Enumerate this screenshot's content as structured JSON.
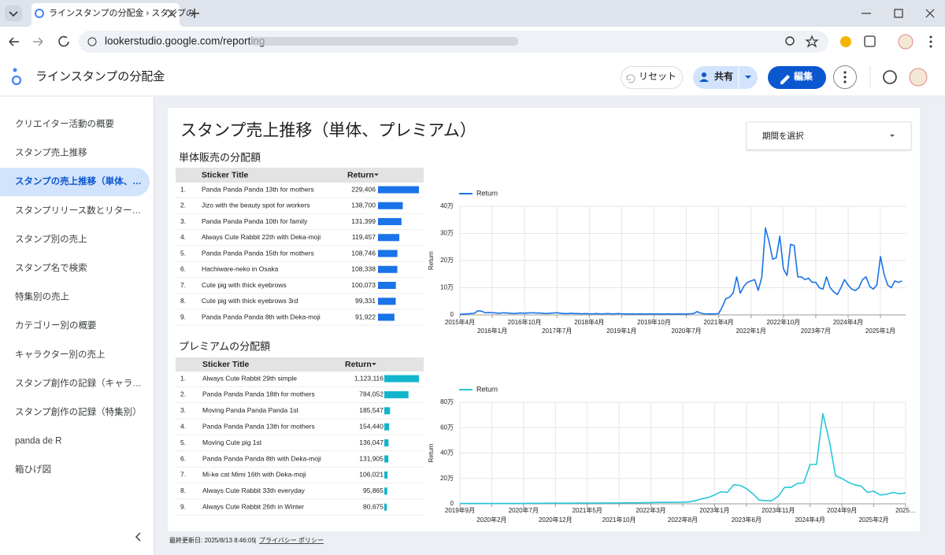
{
  "browser": {
    "tab_title": "ラインスタンプの分配金 › スタンプの",
    "url": "lookerstudio.google.com/reporting"
  },
  "header": {
    "title": "ラインスタンプの分配金",
    "reset": "リセット",
    "share": "共有",
    "edit": "編集"
  },
  "sidebar": {
    "items": [
      "クリエイター活動の概要",
      "スタンプ売上推移",
      "スタンプの売上推移（単体、…",
      "スタンプリリース数とリター…",
      "スタンプ別の売上",
      "スタンプ名で検索",
      "特集別の売上",
      "カテゴリー別の概要",
      "キャラクター別の売上",
      "スタンプ創作の記録（キャラ…",
      "スタンプ創作の記録（特集別）",
      "panda de R",
      "箱ひげ図"
    ],
    "active": 2
  },
  "report": {
    "title": "スタンプ売上推移（単体、プレミアム）",
    "date_picker": "期間を選択",
    "footer": {
      "updated": "最終更新日: 2025/8/13 8:46:05",
      "privacy": "プライバシー ポリシー"
    },
    "tables": [
      {
        "title": "単体販売の分配額",
        "columns": [
          "Sticker Title",
          "Return"
        ],
        "bar_color": "#1a73e8",
        "rows": [
          {
            "rank": "1.",
            "title": "Panda Panda Panda 13th for mothers",
            "value": 229406,
            "value_label": "229,406"
          },
          {
            "rank": "2.",
            "title": "Jizo with the beauty spot for workers",
            "value": 138700,
            "value_label": "138,700"
          },
          {
            "rank": "3.",
            "title": "Panda Panda Panda 10th for family",
            "value": 131399,
            "value_label": "131,399"
          },
          {
            "rank": "4.",
            "title": "Always Cute Rabbit 22th with Deka-moji",
            "value": 119457,
            "value_label": "119,457"
          },
          {
            "rank": "5.",
            "title": "Panda Panda Panda 15th for mothers",
            "value": 108746,
            "value_label": "108,746"
          },
          {
            "rank": "6.",
            "title": "Hachiware-neko in Osaka",
            "value": 108338,
            "value_label": "108,338"
          },
          {
            "rank": "7.",
            "title": "Cute pig with thick eyebrows",
            "value": 100073,
            "value_label": "100,073"
          },
          {
            "rank": "8.",
            "title": "Cute pig with thick eyebrows 3rd",
            "value": 99331,
            "value_label": "99,331"
          },
          {
            "rank": "9.",
            "title": "Panda Panda Panda 8th with Deka-moji",
            "value": 91922,
            "value_label": "91,922"
          }
        ]
      },
      {
        "title": "プレミアムの分配額",
        "columns": [
          "Sticker Title",
          "Return"
        ],
        "bar_color": "#12b5cb",
        "rows": [
          {
            "rank": "1.",
            "title": "Always Cute Rabbit 29th simple",
            "value": 1123116,
            "value_label": "1,123,116"
          },
          {
            "rank": "2.",
            "title": "Panda Panda Panda 18th for mothers",
            "value": 784052,
            "value_label": "784,052"
          },
          {
            "rank": "3.",
            "title": "Moving Panda Panda Panda 1st",
            "value": 185547,
            "value_label": "185,547"
          },
          {
            "rank": "4.",
            "title": "Panda Panda Panda 13th for mothers",
            "value": 154440,
            "value_label": "154,440"
          },
          {
            "rank": "5.",
            "title": "Moving Cute pig 1st",
            "value": 136047,
            "value_label": "136,047"
          },
          {
            "rank": "6.",
            "title": "Panda Panda Panda 8th with Deka-moji",
            "value": 131905,
            "value_label": "131,905"
          },
          {
            "rank": "7.",
            "title": "Mi-ke cat Mimi 16th with Deka-moji",
            "value": 106021,
            "value_label": "106,021"
          },
          {
            "rank": "8.",
            "title": "Always Cute Rabbit 33th everyday",
            "value": 95865,
            "value_label": "95,865"
          },
          {
            "rank": "9.",
            "title": "Always Cute Rabbit 26th in Winter",
            "value": 80675,
            "value_label": "80,675"
          }
        ]
      }
    ]
  },
  "chart_data": [
    {
      "type": "line",
      "y_label": "Return",
      "grid": true,
      "legend": "top-left",
      "xlim": [
        "2015-04",
        "2025-08"
      ],
      "xticks": [
        {
          "value": "2015-04",
          "label": "2015年4月"
        },
        {
          "value": "2016-01",
          "label": "2016年1月"
        },
        {
          "value": "2016-10",
          "label": "2016年10月"
        },
        {
          "value": "2017-07",
          "label": "2017年7月"
        },
        {
          "value": "2018-04",
          "label": "2018年4月"
        },
        {
          "value": "2019-01",
          "label": "2019年1月"
        },
        {
          "value": "2019-10",
          "label": "2019年10月"
        },
        {
          "value": "2020-07",
          "label": "2020年7月"
        },
        {
          "value": "2021-04",
          "label": "2021年4月"
        },
        {
          "value": "2022-01",
          "label": "2022年1月"
        },
        {
          "value": "2022-10",
          "label": "2022年10月"
        },
        {
          "value": "2023-07",
          "label": "2023年7月"
        },
        {
          "value": "2024-04",
          "label": "2024年4月"
        },
        {
          "value": "2025-01",
          "label": "2025年1月"
        }
      ],
      "ylim": [
        0,
        400000
      ],
      "yticks": [
        0,
        {
          "value": 100000,
          "label": "10万"
        },
        {
          "value": 200000,
          "label": "20万"
        },
        {
          "value": 300000,
          "label": "30万"
        },
        {
          "value": 400000,
          "label": "40万"
        }
      ],
      "x": [
        "2015-04",
        "2015-05",
        "2015-06",
        "2015-07",
        "2015-08",
        "2015-09",
        "2015-10",
        "2015-11",
        "2015-12",
        "2016-01",
        "2016-02",
        "2016-03",
        "2016-04",
        "2016-05",
        "2016-06",
        "2016-07",
        "2016-08",
        "2016-09",
        "2016-10",
        "2016-11",
        "2016-12",
        "2017-01",
        "2017-02",
        "2017-03",
        "2017-04",
        "2017-05",
        "2017-06",
        "2017-07",
        "2017-08",
        "2017-09",
        "2017-10",
        "2017-11",
        "2017-12",
        "2018-01",
        "2018-02",
        "2018-03",
        "2018-04",
        "2018-05",
        "2018-06",
        "2018-07",
        "2018-08",
        "2018-09",
        "2018-10",
        "2018-11",
        "2018-12",
        "2019-01",
        "2019-02",
        "2019-03",
        "2019-04",
        "2019-05",
        "2019-06",
        "2019-07",
        "2019-08",
        "2019-09",
        "2019-10",
        "2019-11",
        "2019-12",
        "2020-01",
        "2020-02",
        "2020-03",
        "2020-04",
        "2020-05",
        "2020-06",
        "2020-07",
        "2020-08",
        "2020-09",
        "2020-10",
        "2020-11",
        "2020-12",
        "2021-01",
        "2021-02",
        "2021-03",
        "2021-04",
        "2021-05",
        "2021-06",
        "2021-07",
        "2021-08",
        "2021-09",
        "2021-10",
        "2021-11",
        "2021-12",
        "2022-01",
        "2022-02",
        "2022-03",
        "2022-04",
        "2022-05",
        "2022-06",
        "2022-07",
        "2022-08",
        "2022-09",
        "2022-10",
        "2022-11",
        "2022-12",
        "2023-01",
        "2023-02",
        "2023-03",
        "2023-04",
        "2023-05",
        "2023-06",
        "2023-07",
        "2023-08",
        "2023-09",
        "2023-10",
        "2023-11",
        "2023-12",
        "2024-01",
        "2024-02",
        "2024-03",
        "2024-04",
        "2024-05",
        "2024-06",
        "2024-07",
        "2024-08",
        "2024-09",
        "2024-10",
        "2024-11",
        "2024-12",
        "2025-01",
        "2025-02",
        "2025-03",
        "2025-04",
        "2025-05",
        "2025-06",
        "2025-07"
      ],
      "series": [
        {
          "name": "Return",
          "color": "#1a73e8",
          "values": [
            2000,
            3000,
            4000,
            5000,
            6000,
            15000,
            14000,
            8000,
            9000,
            8000,
            7000,
            6000,
            8000,
            7000,
            6000,
            5000,
            6000,
            7000,
            6000,
            7000,
            8000,
            7000,
            7000,
            6000,
            5000,
            6000,
            7000,
            8000,
            6000,
            5000,
            5000,
            6000,
            5000,
            5000,
            4000,
            5000,
            4000,
            4000,
            5000,
            4000,
            4000,
            5000,
            4000,
            4000,
            5000,
            4000,
            4000,
            3000,
            4000,
            3000,
            4000,
            3000,
            3000,
            4000,
            3000,
            4000,
            3000,
            3000,
            4000,
            3000,
            3000,
            4000,
            3000,
            3000,
            4000,
            5000,
            12000,
            6000,
            4000,
            4000,
            3000,
            4000,
            5000,
            30000,
            60000,
            65000,
            80000,
            140000,
            80000,
            105000,
            120000,
            125000,
            130000,
            90000,
            140000,
            320000,
            270000,
            205000,
            210000,
            290000,
            170000,
            145000,
            260000,
            255000,
            140000,
            140000,
            130000,
            135000,
            120000,
            120000,
            100000,
            95000,
            140000,
            100000,
            85000,
            75000,
            100000,
            130000,
            110000,
            95000,
            90000,
            100000,
            130000,
            140000,
            105000,
            95000,
            110000,
            215000,
            150000,
            110000,
            100000,
            125000,
            120000,
            125000
          ]
        }
      ]
    },
    {
      "type": "line",
      "y_label": "Return",
      "grid": true,
      "legend": "top-left",
      "xlim": [
        "2019-09",
        "2025-07"
      ],
      "xticks": [
        {
          "value": "2019-09",
          "label": "2019年9月"
        },
        {
          "value": "2020-02",
          "label": "2020年2月"
        },
        {
          "value": "2020-07",
          "label": "2020年7月"
        },
        {
          "value": "2020-12",
          "label": "2020年12月"
        },
        {
          "value": "2021-05",
          "label": "2021年5月"
        },
        {
          "value": "2021-10",
          "label": "2021年10月"
        },
        {
          "value": "2022-03",
          "label": "2022年3月"
        },
        {
          "value": "2022-08",
          "label": "2022年8月"
        },
        {
          "value": "2023-01",
          "label": "2023年1月"
        },
        {
          "value": "2023-06",
          "label": "2023年6月"
        },
        {
          "value": "2023-11",
          "label": "2023年11月"
        },
        {
          "value": "2024-04",
          "label": "2024年4月"
        },
        {
          "value": "2024-09",
          "label": "2024年9月"
        },
        {
          "value": "2025-02",
          "label": "2025年2月"
        },
        {
          "value": "2025-07",
          "label": "2025…"
        }
      ],
      "ylim": [
        0,
        800000
      ],
      "yticks": [
        0,
        {
          "value": 200000,
          "label": "20万"
        },
        {
          "value": 400000,
          "label": "40万"
        },
        {
          "value": 600000,
          "label": "60万"
        },
        {
          "value": 800000,
          "label": "80万"
        }
      ],
      "x": [
        "2019-09",
        "2019-10",
        "2019-11",
        "2019-12",
        "2020-01",
        "2020-02",
        "2020-03",
        "2020-04",
        "2020-05",
        "2020-06",
        "2020-07",
        "2020-08",
        "2020-09",
        "2020-10",
        "2020-11",
        "2020-12",
        "2021-01",
        "2021-02",
        "2021-03",
        "2021-04",
        "2021-05",
        "2021-06",
        "2021-07",
        "2021-08",
        "2021-09",
        "2021-10",
        "2021-11",
        "2021-12",
        "2022-01",
        "2022-02",
        "2022-03",
        "2022-04",
        "2022-05",
        "2022-06",
        "2022-07",
        "2022-08",
        "2022-09",
        "2022-10",
        "2022-11",
        "2022-12",
        "2023-01",
        "2023-02",
        "2023-03",
        "2023-04",
        "2023-05",
        "2023-06",
        "2023-07",
        "2023-08",
        "2023-09",
        "2023-10",
        "2023-11",
        "2023-12",
        "2024-01",
        "2024-02",
        "2024-03",
        "2024-04",
        "2024-05",
        "2024-06",
        "2024-07",
        "2024-08",
        "2024-09",
        "2024-10",
        "2024-11",
        "2024-12",
        "2025-01",
        "2025-02",
        "2025-03",
        "2025-04",
        "2025-05",
        "2025-06",
        "2025-07"
      ],
      "series": [
        {
          "name": "Return",
          "color": "#26c6da",
          "values": [
            3000,
            3000,
            3000,
            3000,
            3000,
            3000,
            3000,
            3000,
            3000,
            3000,
            3000,
            4000,
            4000,
            4000,
            5000,
            5000,
            5000,
            5000,
            6000,
            6000,
            6000,
            6000,
            6000,
            7000,
            7000,
            7000,
            8000,
            8000,
            8000,
            9000,
            10000,
            11000,
            11000,
            12000,
            12000,
            13000,
            15000,
            25000,
            40000,
            50000,
            70000,
            95000,
            90000,
            150000,
            145000,
            120000,
            80000,
            30000,
            25000,
            25000,
            60000,
            130000,
            130000,
            160000,
            165000,
            310000,
            310000,
            710000,
            500000,
            220000,
            200000,
            170000,
            150000,
            140000,
            90000,
            100000,
            70000,
            75000,
            90000,
            80000,
            85000
          ]
        }
      ]
    }
  ]
}
